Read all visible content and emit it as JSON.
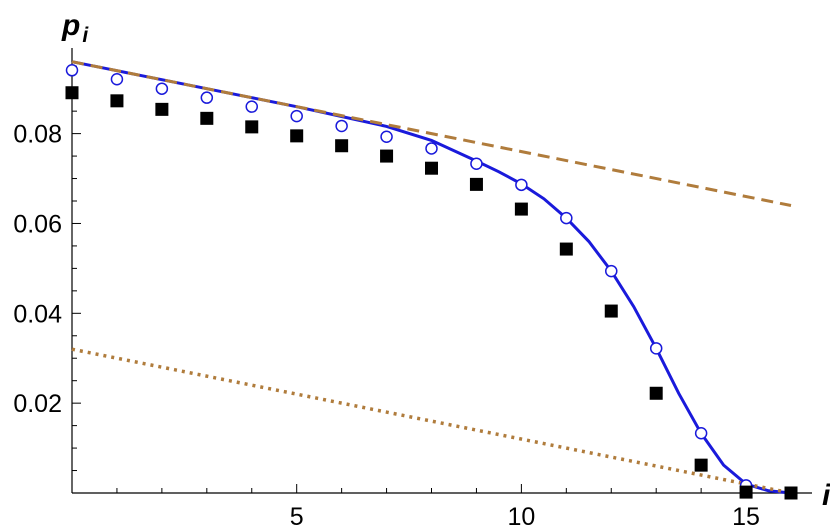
{
  "chart_data": {
    "type": "scatter",
    "title": "",
    "xlabel": "i",
    "ylabel": "p",
    "ylabel_subscript": "i",
    "xlim": [
      0,
      16.2
    ],
    "ylim": [
      0,
      0.0975
    ],
    "x_ticks": [
      5,
      10,
      15
    ],
    "x_tick_labels": [
      "5",
      "10",
      "15"
    ],
    "y_ticks": [
      0.02,
      0.04,
      0.06,
      0.08
    ],
    "y_tick_labels": [
      "0.02",
      "0.04",
      "0.06",
      "0.08"
    ],
    "grid": false,
    "legend": "none",
    "series": [
      {
        "marker": "open-circle",
        "color": "#1a1adb",
        "x": [
          0,
          1,
          2,
          3,
          4,
          5,
          6,
          7,
          8,
          9,
          10,
          11,
          12,
          13,
          14,
          15,
          16
        ],
        "values": [
          0.0941,
          0.0921,
          0.09,
          0.088,
          0.086,
          0.0839,
          0.0817,
          0.0793,
          0.0767,
          0.0733,
          0.0686,
          0.0612,
          0.0494,
          0.0322,
          0.0133,
          0.0017,
          0.0
        ]
      },
      {
        "marker": "filled-square",
        "color": "#000000",
        "x": [
          0,
          1,
          2,
          3,
          4,
          5,
          6,
          7,
          8,
          9,
          10,
          11,
          12,
          13,
          14,
          15,
          16
        ],
        "values": [
          0.0891,
          0.0873,
          0.0854,
          0.0834,
          0.0815,
          0.0795,
          0.0773,
          0.075,
          0.0723,
          0.0687,
          0.0632,
          0.0543,
          0.0405,
          0.0222,
          0.0062,
          0.0002,
          0.0
        ]
      },
      {
        "line": "solid",
        "color": "#1a1adb",
        "x": [
          0,
          1,
          2,
          3,
          4,
          5,
          6,
          7,
          8,
          9,
          9.5,
          10,
          10.5,
          11,
          11.5,
          12,
          12.5,
          13,
          13.5,
          14,
          14.5,
          15,
          15.5,
          16
        ],
        "values": [
          0.096,
          0.094,
          0.092,
          0.09,
          0.088,
          0.086,
          0.0838,
          0.0816,
          0.0785,
          0.0739,
          0.0715,
          0.0688,
          0.0655,
          0.0612,
          0.056,
          0.0494,
          0.0415,
          0.0322,
          0.0222,
          0.0133,
          0.0062,
          0.002,
          0.0005,
          0.0
        ]
      },
      {
        "line": "dashed",
        "color": "#b07c3c",
        "x": [
          0,
          16
        ],
        "values": [
          0.096,
          0.064
        ]
      },
      {
        "line": "dotted",
        "color": "#b07c3c",
        "x": [
          0,
          16
        ],
        "values": [
          0.032,
          0.0
        ]
      }
    ]
  }
}
